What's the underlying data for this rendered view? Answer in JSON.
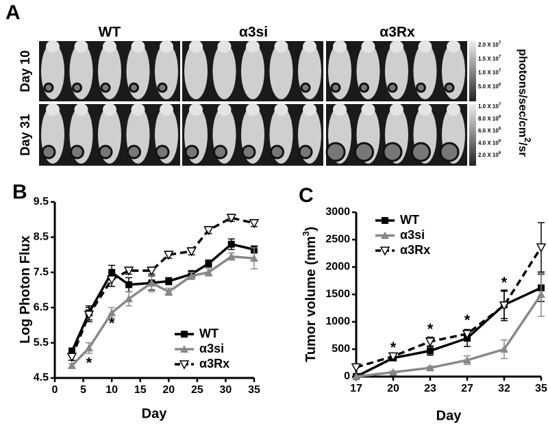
{
  "panel_a": {
    "label": "A",
    "groups": [
      "WT",
      "α3si",
      "α3Rx"
    ],
    "rows": [
      "Day 10",
      "Day 31"
    ],
    "scale_top": [
      {
        "text": "2.0 X 10",
        "exp": "7"
      },
      {
        "text": "1.5 X 10",
        "exp": "7"
      },
      {
        "text": "1.0 X 10",
        "exp": "7"
      },
      {
        "text": "5.0 X 10",
        "exp": "6"
      }
    ],
    "scale_bottom": [
      {
        "text": "1.0 X 10",
        "exp": "7"
      },
      {
        "text": "8.0 X 10",
        "exp": "6"
      },
      {
        "text": "6.0 X 10",
        "exp": "6"
      },
      {
        "text": "4.0 X 10",
        "exp": "6"
      },
      {
        "text": "2.0 X 10",
        "exp": "6"
      }
    ],
    "unit": "photons/sec/cm",
    "unit_sup": "2",
    "unit_end": "/sr"
  },
  "chart_data": [
    {
      "type": "line",
      "panel": "B",
      "y_label": "Log Photon Flux",
      "x_label": "Day",
      "x": [
        3,
        6,
        10,
        13,
        17,
        20,
        24,
        27,
        31,
        35
      ],
      "xlim": [
        0,
        35
      ],
      "xticks": [
        0,
        5,
        10,
        15,
        20,
        25,
        30,
        35
      ],
      "ylim": [
        4.5,
        9.5
      ],
      "yticks": [
        4.5,
        5.5,
        6.5,
        7.5,
        8.5,
        9.5
      ],
      "legend": "lower right",
      "series": [
        {
          "name": "WT",
          "color": "#000000",
          "marker": "square",
          "dashed": false,
          "values": [
            5.25,
            6.35,
            7.5,
            7.15,
            7.2,
            7.25,
            7.45,
            7.75,
            8.3,
            8.15
          ],
          "errors": [
            0.1,
            0.2,
            0.2,
            0.2,
            0.2,
            0.1,
            0.1,
            0.1,
            0.15,
            0.1
          ]
        },
        {
          "name": "α3si",
          "color": "#888888",
          "marker": "triangle",
          "dashed": false,
          "values": [
            4.85,
            5.35,
            6.35,
            6.75,
            7.2,
            6.95,
            7.4,
            7.5,
            7.95,
            7.9
          ],
          "errors": [
            0.05,
            0.15,
            0.15,
            0.2,
            0.25,
            0.1,
            0.1,
            0.1,
            0.1,
            0.3
          ]
        },
        {
          "name": "α3Rx",
          "color": "#000000",
          "marker": "open-down-triangle",
          "dashed": true,
          "values": [
            5.1,
            6.3,
            7.3,
            7.55,
            7.55,
            8.0,
            8.1,
            8.7,
            9.05,
            8.9
          ],
          "errors": [
            0.1,
            0.2,
            0.2,
            0.1,
            0.1,
            0.1,
            0.1,
            0.1,
            0.1,
            0.1
          ]
        }
      ],
      "annotations": [
        {
          "text": "*",
          "x": 6,
          "y": 4.97
        },
        {
          "text": "*",
          "x": 10,
          "y": 6.1
        }
      ]
    },
    {
      "type": "line",
      "panel": "C",
      "y_label": "Tumor volume (mm",
      "y_label_sup": "3",
      "y_label_end": ")",
      "x_label": "Day",
      "categories": [
        "17",
        "20",
        "23",
        "27",
        "32",
        "35"
      ],
      "ylim": [
        0,
        3000
      ],
      "yticks": [
        0,
        500,
        1000,
        1500,
        2000,
        2500,
        3000
      ],
      "legend": "upper left",
      "series": [
        {
          "name": "WT",
          "color": "#000000",
          "marker": "square",
          "dashed": false,
          "values": [
            0,
            340,
            470,
            700,
            1310,
            1620
          ],
          "errors": [
            0,
            30,
            80,
            150,
            250,
            250
          ]
        },
        {
          "name": "α3si",
          "color": "#888888",
          "marker": "triangle",
          "dashed": false,
          "values": [
            0,
            80,
            160,
            300,
            500,
            1500
          ],
          "errors": [
            0,
            20,
            30,
            80,
            170,
            400
          ]
        },
        {
          "name": "α3Rx",
          "color": "#000000",
          "marker": "open-down-triangle",
          "dashed": true,
          "values": [
            170,
            370,
            640,
            780,
            1300,
            2360
          ],
          "errors": [
            0,
            40,
            80,
            80,
            280,
            450
          ]
        }
      ],
      "annotations": [
        {
          "text": "*",
          "x": "20",
          "y": 560
        },
        {
          "text": "*",
          "x": "23",
          "y": 900
        },
        {
          "text": "*",
          "x": "27",
          "y": 1060
        },
        {
          "text": "*",
          "x": "32",
          "y": 1750
        }
      ]
    }
  ]
}
